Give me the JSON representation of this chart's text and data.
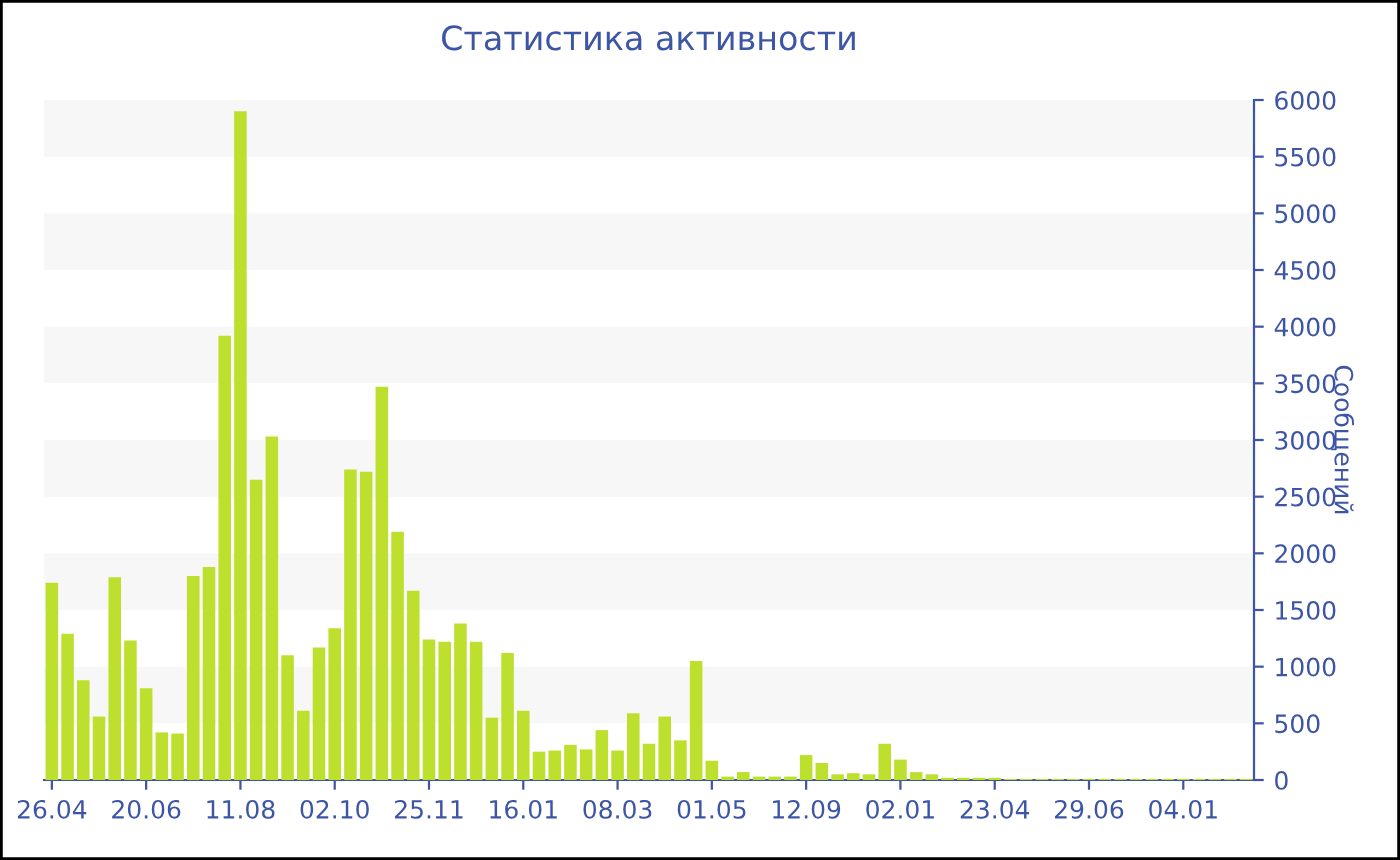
{
  "chart_data": {
    "type": "bar",
    "title": "Статистика активности",
    "ylabel": "Сообщений",
    "categories": [
      "26.04",
      null,
      null,
      null,
      null,
      null,
      "20.06",
      null,
      null,
      null,
      null,
      null,
      "11.08",
      null,
      null,
      null,
      null,
      null,
      "02.10",
      null,
      null,
      null,
      null,
      null,
      "25.11",
      null,
      null,
      null,
      null,
      null,
      "16.01",
      null,
      null,
      null,
      null,
      null,
      "08.03",
      null,
      null,
      null,
      null,
      null,
      "01.05",
      null,
      null,
      null,
      null,
      null,
      "12.09",
      null,
      null,
      null,
      null,
      null,
      "02.01",
      null,
      null,
      null,
      null,
      null,
      "23.04",
      null,
      null,
      null,
      null,
      null,
      "29.06",
      null,
      null,
      null,
      null,
      null,
      "04.01",
      null,
      null,
      null,
      null
    ],
    "values": [
      1740,
      1290,
      880,
      560,
      1790,
      1230,
      810,
      420,
      410,
      1800,
      1880,
      3920,
      5900,
      2650,
      3030,
      1100,
      610,
      1170,
      1340,
      2740,
      2720,
      3470,
      2190,
      1670,
      1240,
      1220,
      1380,
      1220,
      550,
      1120,
      610,
      250,
      260,
      310,
      270,
      440,
      260,
      590,
      320,
      560,
      350,
      1050,
      170,
      30,
      70,
      30,
      30,
      30,
      220,
      150,
      50,
      60,
      50,
      320,
      180,
      70,
      50,
      20,
      20,
      20,
      20,
      10,
      10,
      10,
      10,
      10,
      10,
      10,
      10,
      10,
      10,
      10,
      10,
      10,
      10,
      10,
      10
    ],
    "color": "#bde02e",
    "ylim": [
      0,
      6000
    ],
    "yticks": [
      0,
      500,
      1000,
      1500,
      2000,
      2500,
      3000,
      3500,
      4000,
      4500,
      5000,
      5500,
      6000
    ],
    "bands": [
      {
        "axis": "y",
        "from": 500,
        "to": 1000,
        "color": "#f7f7f7"
      },
      {
        "axis": "y",
        "from": 1500,
        "to": 2000,
        "color": "#f7f7f7"
      },
      {
        "axis": "y",
        "from": 2500,
        "to": 3000,
        "color": "#f7f7f7"
      },
      {
        "axis": "y",
        "from": 3500,
        "to": 4000,
        "color": "#f7f7f7"
      },
      {
        "axis": "y",
        "from": 4500,
        "to": 5000,
        "color": "#f7f7f7"
      },
      {
        "axis": "y",
        "from": 5500,
        "to": 6000,
        "color": "#f7f7f7"
      }
    ]
  }
}
